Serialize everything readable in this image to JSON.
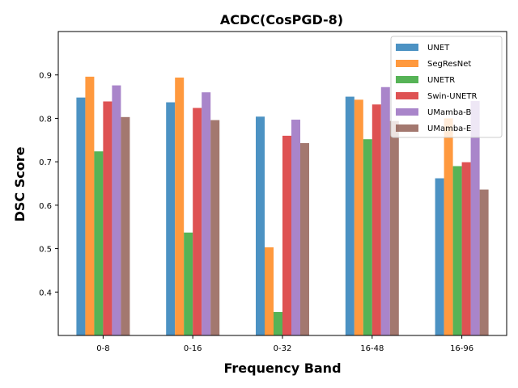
{
  "chart_data": {
    "type": "bar",
    "title": "ACDC(CosPGD-8)",
    "xlabel": "Frequency Band",
    "ylabel": "DSC Score",
    "categories": [
      "0-8",
      "0-16",
      "0-32",
      "16-48",
      "16-96"
    ],
    "ylim": [
      0.3,
      1.0
    ],
    "yticks": [
      0.4,
      0.5,
      0.6,
      0.7,
      0.8,
      0.9
    ],
    "ytick_labels": [
      "0.4",
      "0.5",
      "0.6",
      "0.7",
      "0.8",
      "0.9"
    ],
    "grid": false,
    "legend_position": "top-right",
    "series": [
      {
        "name": "UNET",
        "color": "#1f77b4",
        "values": [
          0.848,
          0.837,
          0.804,
          0.85,
          0.662
        ]
      },
      {
        "name": "SegResNet",
        "color": "#ff7f0e",
        "values": [
          0.896,
          0.894,
          0.503,
          0.843,
          0.8
        ]
      },
      {
        "name": "UNETR",
        "color": "#2ca02c",
        "values": [
          0.724,
          0.537,
          0.354,
          0.752,
          0.69
        ]
      },
      {
        "name": "Swin-UNETR",
        "color": "#d62728",
        "values": [
          0.839,
          0.824,
          0.76,
          0.832,
          0.699
        ]
      },
      {
        "name": "UMamba-B",
        "color": "#9467bd",
        "values": [
          0.876,
          0.86,
          0.797,
          0.872,
          0.84
        ]
      },
      {
        "name": "UMamba-E",
        "color": "#8c564b",
        "values": [
          0.803,
          0.796,
          0.743,
          0.794,
          0.636
        ]
      }
    ]
  }
}
